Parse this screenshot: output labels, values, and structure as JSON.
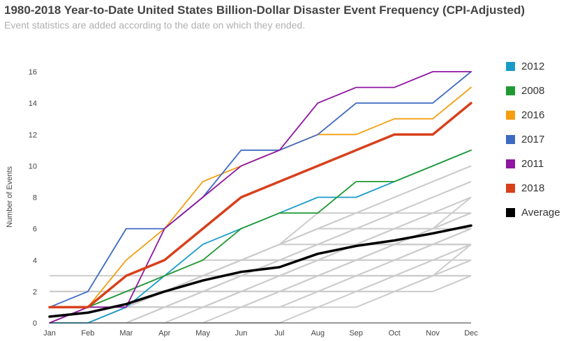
{
  "header": {
    "title": "1980-2018 Year-to-Date United States Billion-Dollar Disaster Event Frequency (CPI-Adjusted)",
    "subtitle": "Event statistics are added according to the date on which they ended."
  },
  "chart_data": {
    "type": "line",
    "title": "1980-2018 Year-to-Date United States Billion-Dollar Disaster Event Frequency (CPI-Adjusted)",
    "subtitle": "Event statistics are added according to the date on which they ended.",
    "xlabel": "",
    "ylabel": "Number of Events",
    "categories": [
      "Jan",
      "Feb",
      "Mar",
      "Apr",
      "May",
      "Jun",
      "Jul",
      "Aug",
      "Sep",
      "Oct",
      "Nov",
      "Dec"
    ],
    "yticks": [
      0,
      2,
      4,
      6,
      8,
      10,
      12,
      14,
      16
    ],
    "ylim": [
      0,
      16
    ],
    "grid": false,
    "legend_position": "right",
    "series": [
      {
        "name": "2012",
        "color": "#1a9bc7",
        "values": [
          0,
          0,
          1,
          3,
          5,
          6,
          7,
          8,
          8,
          9,
          10,
          11
        ]
      },
      {
        "name": "2008",
        "color": "#1f9a33",
        "values": [
          1,
          1,
          2,
          3,
          4,
          6,
          7,
          7,
          9,
          9,
          10,
          11
        ]
      },
      {
        "name": "2016",
        "color": "#f59e10",
        "values": [
          1,
          1,
          4,
          6,
          9,
          10,
          11,
          12,
          12,
          13,
          13,
          15
        ]
      },
      {
        "name": "2017",
        "color": "#3f6ac2",
        "values": [
          1,
          2,
          6,
          6,
          8,
          11,
          11,
          12,
          14,
          14,
          14,
          16
        ]
      },
      {
        "name": "2011",
        "color": "#8e16a0",
        "values": [
          0,
          1,
          1,
          6,
          8,
          10,
          11,
          14,
          15,
          15,
          16,
          16
        ]
      },
      {
        "name": "2018",
        "color": "#d7401b",
        "values": [
          1,
          1,
          3,
          4,
          6,
          8,
          9,
          10,
          11,
          12,
          12,
          14
        ]
      },
      {
        "name": "Average",
        "color": "#000000",
        "values": [
          0.4,
          0.65,
          1.2,
          2.0,
          2.7,
          3.25,
          3.55,
          4.4,
          4.9,
          5.25,
          5.7,
          6.2
        ]
      }
    ],
    "background_series_color": "#cccccc",
    "background_series": [
      [
        0,
        0,
        0,
        0,
        0,
        0,
        0,
        1,
        1,
        2,
        2,
        3
      ],
      [
        0,
        0,
        0,
        0,
        0,
        1,
        1,
        1,
        2,
        2,
        3,
        3
      ],
      [
        0,
        0,
        0,
        0,
        1,
        1,
        1,
        2,
        2,
        2,
        3,
        4
      ],
      [
        0,
        0,
        0,
        1,
        1,
        1,
        2,
        2,
        3,
        3,
        4,
        4
      ],
      [
        0,
        0,
        0,
        1,
        1,
        2,
        2,
        2,
        3,
        3,
        4,
        5
      ],
      [
        0,
        0,
        1,
        1,
        1,
        1,
        2,
        3,
        3,
        4,
        4,
        5
      ],
      [
        1,
        1,
        1,
        1,
        1,
        1,
        1,
        2,
        2,
        3,
        3,
        5
      ],
      [
        0,
        0,
        0,
        1,
        2,
        2,
        3,
        3,
        4,
        4,
        5,
        5
      ],
      [
        0,
        0,
        1,
        1,
        2,
        3,
        3,
        3,
        4,
        5,
        5,
        5
      ],
      [
        0,
        1,
        1,
        1,
        1,
        2,
        2,
        3,
        4,
        5,
        5,
        6
      ],
      [
        0,
        0,
        1,
        2,
        2,
        3,
        3,
        4,
        5,
        5,
        6,
        6
      ],
      [
        1,
        1,
        1,
        2,
        3,
        3,
        4,
        4,
        5,
        5,
        6,
        7
      ],
      [
        0,
        1,
        1,
        2,
        2,
        3,
        4,
        5,
        5,
        6,
        6,
        7
      ],
      [
        2,
        2,
        2,
        2,
        2,
        3,
        3,
        4,
        4,
        5,
        6,
        7
      ],
      [
        0,
        0,
        1,
        1,
        2,
        2,
        3,
        4,
        5,
        6,
        7,
        7
      ],
      [
        1,
        1,
        2,
        2,
        3,
        4,
        4,
        5,
        6,
        6,
        7,
        8
      ],
      [
        0,
        1,
        1,
        2,
        3,
        4,
        5,
        5,
        6,
        7,
        7,
        8
      ],
      [
        1,
        1,
        2,
        3,
        4,
        4,
        5,
        6,
        6,
        7,
        8,
        9
      ],
      [
        1,
        1,
        2,
        2,
        3,
        4,
        5,
        6,
        7,
        7,
        8,
        9
      ],
      [
        0,
        0,
        1,
        2,
        3,
        4,
        5,
        7,
        7,
        8,
        9,
        10
      ],
      [
        1,
        1,
        1,
        2,
        3,
        4,
        5,
        6,
        7,
        8,
        9,
        10
      ],
      [
        2,
        2,
        2,
        3,
        3,
        4,
        4,
        5,
        5,
        6,
        6,
        8
      ],
      [
        3,
        3,
        3,
        3,
        3,
        4,
        4,
        4,
        4,
        5,
        5,
        6
      ],
      [
        2,
        2,
        2,
        2,
        3,
        3,
        3,
        4,
        5,
        5,
        5,
        6
      ],
      [
        1,
        1,
        2,
        2,
        2,
        2,
        3,
        3,
        4,
        4,
        5,
        6
      ],
      [
        1,
        1,
        1,
        1,
        2,
        2,
        2,
        3,
        3,
        4,
        5,
        5
      ],
      [
        0,
        0,
        0,
        1,
        1,
        2,
        2,
        2,
        3,
        3,
        3,
        4
      ],
      [
        0,
        0,
        1,
        1,
        1,
        2,
        2,
        2,
        2,
        3,
        3,
        3
      ]
    ]
  }
}
